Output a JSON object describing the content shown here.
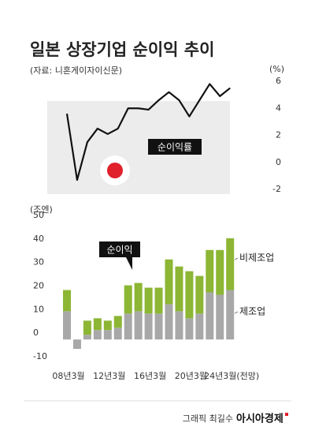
{
  "title": "일본 상장기업 순이익 추이",
  "subtitle": "(자료: 니혼게이자이신문)",
  "credit": "그래픽 최길수",
  "brand": "아시아경제",
  "chart_data": [
    {
      "type": "line",
      "y_label": "(%)",
      "series": [
        {
          "name": "순이익률",
          "color": "#111111",
          "values": [
            3.6,
            -1.3,
            1.5,
            2.5,
            2.1,
            2.5,
            4.0,
            4.0,
            3.9,
            4.6,
            5.2,
            4.6,
            3.4,
            4.6,
            5.8,
            4.9,
            5.5
          ]
        }
      ],
      "ylim": [
        -2,
        6
      ],
      "yticks": [
        -2,
        0,
        2,
        4,
        6
      ]
    },
    {
      "type": "stacked-bar",
      "y_label": "(조엔)",
      "annotation": "순이익",
      "categories": [
        "08년3월",
        null,
        null,
        null,
        "12년3월",
        null,
        null,
        null,
        "16년3월",
        null,
        null,
        null,
        "20년3월",
        null,
        null,
        null,
        "24년3월(전망)"
      ],
      "series": [
        {
          "name": "제조업",
          "color": "#a8a8a8",
          "values": [
            12,
            -4,
            2,
            4,
            4,
            5,
            11,
            12,
            11,
            11,
            15,
            12,
            9,
            11,
            20,
            19,
            21
          ]
        },
        {
          "name": "비제조업",
          "color": "#8cb634",
          "values": [
            9,
            0,
            6,
            5,
            4,
            5,
            12,
            12,
            11,
            11,
            19,
            19,
            20,
            16,
            18,
            19,
            22
          ]
        }
      ],
      "ylim": [
        -10,
        50
      ],
      "yticks": [
        -10,
        0,
        10,
        20,
        30,
        40,
        50
      ]
    }
  ]
}
